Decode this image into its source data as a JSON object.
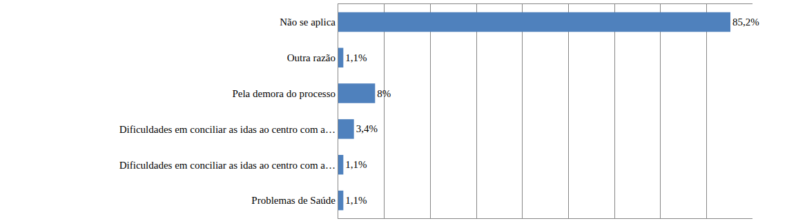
{
  "chart_data": {
    "type": "bar",
    "orientation": "horizontal",
    "categories": [
      "Não se aplica",
      "Outra razão",
      "Pela demora do processo",
      "Dificuldades em conciliar as idas ao centro com a…",
      "Dificuldades em conciliar as idas ao centro com a…",
      "Problemas de Saúde"
    ],
    "values": [
      85.2,
      1.1,
      8,
      3.4,
      1.1,
      1.1
    ],
    "value_labels": [
      "85,2%",
      "1,1%",
      "8%",
      "3,4%",
      "1,1%",
      "1,1%"
    ],
    "color": "#4f81bd",
    "xlim": [
      0,
      90
    ],
    "xticks": [
      0,
      10,
      20,
      30,
      40,
      50,
      60,
      70,
      80,
      90
    ],
    "grid": true,
    "data_labels": true,
    "tick_labels": "y"
  }
}
